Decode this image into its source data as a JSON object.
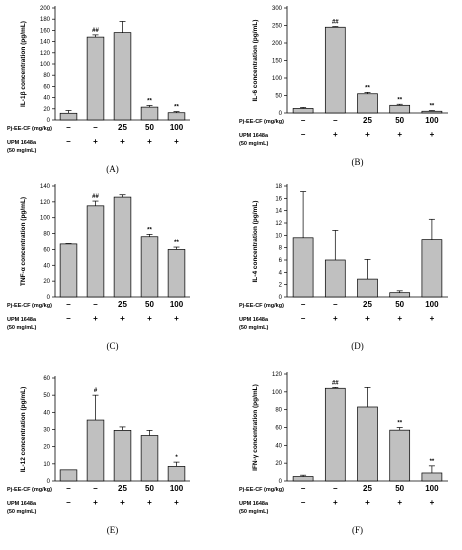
{
  "conditions": {
    "row1_label": "Pj-EE-CF (mg/kg)",
    "row1_values": [
      "–",
      "–",
      "25",
      "50",
      "100"
    ],
    "row2_label_line1": "UPM 1648a",
    "row2_label_line2": "(50 mg/mL)",
    "row2_values": [
      "–",
      "+",
      "+",
      "+",
      "+"
    ]
  },
  "chart_data": [
    {
      "type": "bar",
      "panel": "(A)",
      "ylabel": "IL-1β concentration (pg/mL)",
      "ylim": [
        0,
        200
      ],
      "yticks": [
        0,
        20,
        40,
        60,
        80,
        100,
        120,
        140,
        160,
        180,
        200
      ],
      "values": [
        12,
        148,
        156,
        23,
        13
      ],
      "errors": [
        5,
        4,
        20,
        3,
        2
      ],
      "annotations": [
        "",
        "##",
        "",
        "**",
        "**"
      ]
    },
    {
      "type": "bar",
      "panel": "(B)",
      "ylabel": "IL-6 concentration (pg/mL)",
      "ylim": [
        0,
        300
      ],
      "yticks": [
        0,
        50,
        100,
        150,
        200,
        250,
        300
      ],
      "values": [
        13,
        245,
        55,
        22,
        5
      ],
      "errors": [
        3,
        2,
        4,
        3,
        2
      ],
      "annotations": [
        "",
        "##",
        "**",
        "**",
        "**"
      ]
    },
    {
      "type": "bar",
      "panel": "(C)",
      "ylabel": "TNF-α concentration (pg/mL)",
      "ylim": [
        0,
        140
      ],
      "yticks": [
        0,
        20,
        40,
        60,
        80,
        100,
        120,
        140
      ],
      "values": [
        67,
        115,
        126,
        76,
        60
      ],
      "errors": [
        0.5,
        6,
        3,
        3,
        3
      ],
      "annotations": [
        "",
        "##",
        "",
        "**",
        "**"
      ]
    },
    {
      "type": "bar",
      "panel": "(D)",
      "ylabel": "IL-4 concentration (pg/mL)",
      "ylim": [
        0,
        18
      ],
      "yticks": [
        0,
        2,
        4,
        6,
        8,
        10,
        12,
        14,
        16,
        18
      ],
      "values": [
        9.6,
        6.0,
        2.9,
        0.7,
        9.3
      ],
      "errors": [
        7.5,
        4.8,
        3.2,
        0.3,
        3.3
      ],
      "annotations": [
        "",
        "",
        "",
        "",
        ""
      ]
    },
    {
      "type": "bar",
      "panel": "(E)",
      "ylabel": "IL-12 concentration (pg/mL)",
      "ylim": [
        0,
        60
      ],
      "yticks": [
        0,
        10,
        20,
        30,
        40,
        50,
        60
      ],
      "values": [
        6.5,
        35.5,
        29.5,
        26.5,
        8.5
      ],
      "errors": [
        0,
        14.5,
        2,
        3,
        2.5
      ],
      "annotations": [
        "",
        "#",
        "",
        "",
        "*"
      ]
    },
    {
      "type": "bar",
      "panel": "(F)",
      "ylabel": "IFN-γ concentration (pg/mL)",
      "ylim": [
        0,
        120
      ],
      "yticks": [
        0,
        20,
        40,
        60,
        80,
        100,
        120
      ],
      "values": [
        5,
        104,
        83,
        57,
        9
      ],
      "errors": [
        1.5,
        1,
        22,
        3,
        8
      ],
      "annotations": [
        "",
        "##",
        "",
        "**",
        "**"
      ]
    }
  ]
}
